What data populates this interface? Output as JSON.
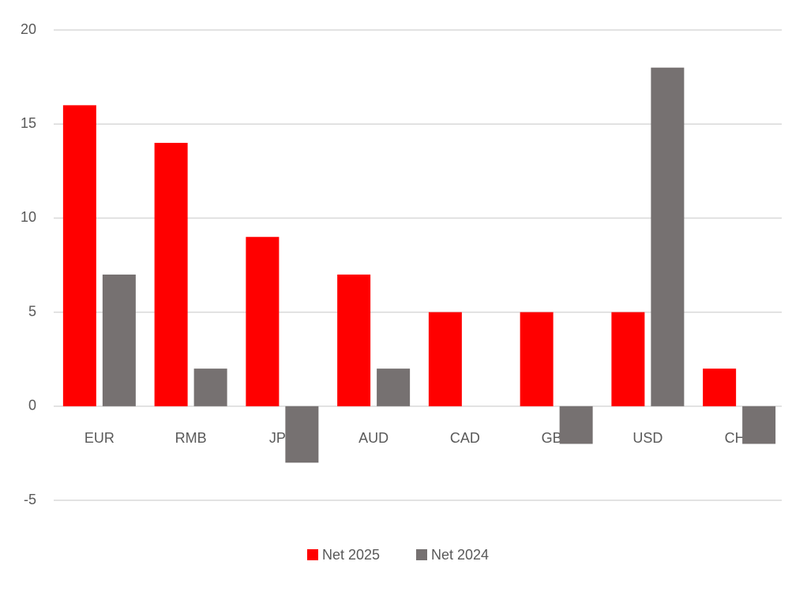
{
  "chart_data": {
    "type": "bar",
    "categories": [
      "EUR",
      "RMB",
      "JPY",
      "AUD",
      "CAD",
      "GBP",
      "USD",
      "CHF"
    ],
    "series": [
      {
        "name": "Net 2025",
        "color": "#ff0000",
        "values": [
          16,
          14,
          9,
          7,
          5,
          5,
          5,
          2
        ]
      },
      {
        "name": "Net 2024",
        "color": "#767171",
        "values": [
          7,
          2,
          -3,
          2,
          0,
          -2,
          18,
          -2
        ]
      }
    ],
    "ylim": [
      -5,
      20
    ],
    "yticks": [
      -5,
      0,
      5,
      10,
      15,
      20
    ],
    "grid": true,
    "legend": "bottom"
  }
}
